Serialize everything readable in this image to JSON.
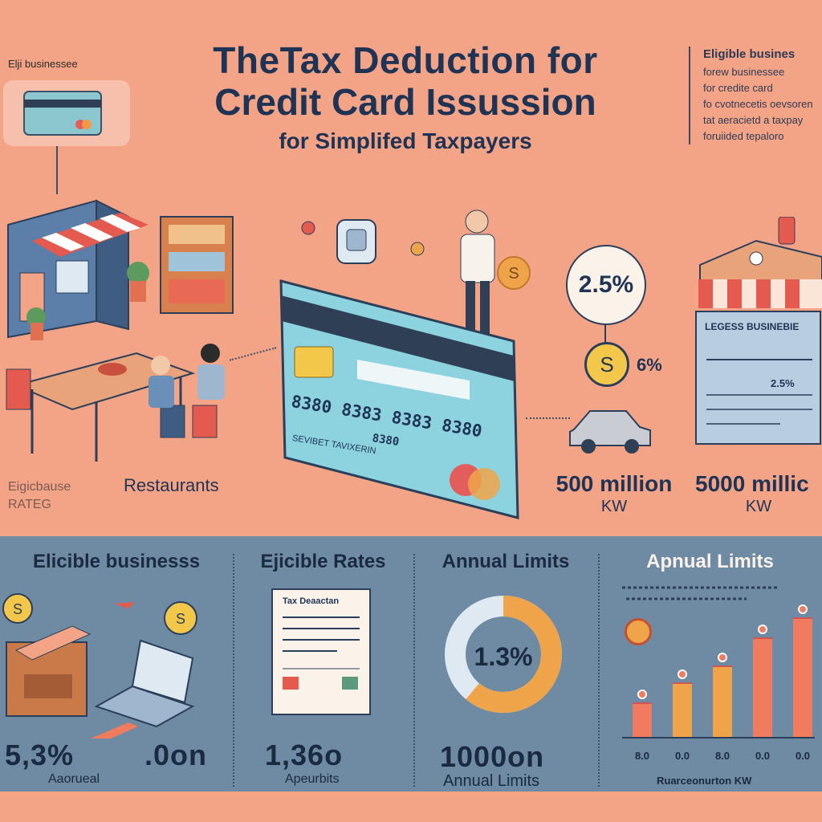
{
  "title": {
    "line1": "TheTax Deduction for",
    "line2": "Credit Card Issussion",
    "line3": "for Simplifed Taxpayers"
  },
  "top_left": {
    "label": "Elji businessee"
  },
  "right_note": {
    "heading": "Eligible busines",
    "lines": [
      "forew businessee",
      "for credite card",
      "fo cvotnecetis oevsoren",
      "tat aeracietd a taxpay",
      "foruiided tepaloro"
    ]
  },
  "left_labels": {
    "rates": "Eigicbause RATEG",
    "restaurants": "Restaurants"
  },
  "stats": {
    "rate_circle": "2.5%",
    "coin_symbol": "S",
    "coin_rate": "6%",
    "limit1_value": "500 million",
    "limit1_unit": "KW",
    "limit2_value": "5000 millic",
    "limit2_unit": "KW",
    "sign_rate": "2.5%",
    "sign_title": "LEGESS BUSINEBIE"
  },
  "card": {
    "number": "8380  8383  8383  8380",
    "sub_number": "8380",
    "holder": "SEVIBET TAVIXERIN"
  },
  "bottom": {
    "col1": {
      "heading": "Elicible businesss",
      "value_a": "5,3%",
      "value_b": ".0on",
      "sub": "Aaorueal"
    },
    "col2": {
      "heading": "Ejicible Rates",
      "doc_title": "Tax Deaactan",
      "value": "1,36o",
      "sub": "Apeurbits"
    },
    "col3": {
      "heading": "Annual Limits",
      "donut_label": "1.3%",
      "value": "1000on",
      "sub": "Annual Limits"
    },
    "col4": {
      "heading": "Apnual Limits",
      "footer": "Ruarceonurton KW"
    }
  },
  "chart_data": {
    "type": "bar",
    "categories": [
      "8.0",
      "0.0",
      "8.0",
      "0.0",
      "0.0"
    ],
    "values": [
      1.2,
      1.9,
      2.5,
      3.5,
      4.2
    ],
    "colors": [
      "#f07b5e",
      "#f0a44a",
      "#f0a44a",
      "#f07b5e",
      "#f07b5e"
    ],
    "title": "Apnual Limits",
    "xlabel": "Ruarceonurton KW",
    "ylim": [
      0,
      4.5
    ]
  }
}
